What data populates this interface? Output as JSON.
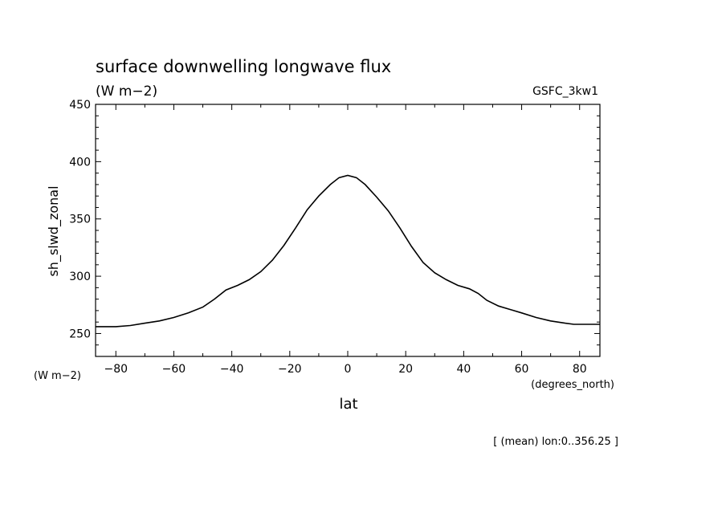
{
  "chart_data": {
    "type": "line",
    "title": "surface downwelling longwave flux",
    "units_label": "(W m−2)",
    "dataset_label": "GSFC_3kw1",
    "ylabel": "sh_slwd_zonal",
    "y_unit_label": "(W m−2)",
    "xlabel": "lat",
    "x_unit_label": "(degrees_north)",
    "footnote": "[ (mean) lon:0..356.25 ]",
    "xlim": [
      -87,
      87
    ],
    "ylim": [
      230,
      450
    ],
    "x_ticks": [
      -80,
      -60,
      -40,
      -20,
      0,
      20,
      40,
      60,
      80
    ],
    "y_ticks": [
      250,
      300,
      350,
      400,
      450
    ],
    "x_tick_labels": [
      "−80",
      "−60",
      "−40",
      "−20",
      "0",
      "20",
      "40",
      "60",
      "80"
    ],
    "y_tick_labels": [
      "250",
      "300",
      "350",
      "400",
      "450"
    ],
    "series": [
      {
        "x": [
          -87,
          -80,
          -75,
          -70,
          -65,
          -60,
          -55,
          -50,
          -46,
          -42,
          -38,
          -34,
          -30,
          -26,
          -22,
          -18,
          -14,
          -10,
          -6,
          -3,
          0,
          3,
          6,
          10,
          14,
          18,
          22,
          26,
          30,
          34,
          38,
          42,
          45,
          48,
          52,
          56,
          60,
          65,
          70,
          75,
          78,
          83,
          87
        ],
        "y": [
          256,
          256,
          257,
          259,
          261,
          264,
          268,
          273,
          280,
          288,
          292,
          297,
          304,
          314,
          327,
          342,
          358,
          370,
          380,
          386,
          388,
          386,
          380,
          369,
          357,
          342,
          326,
          312,
          303,
          297,
          292,
          289,
          285,
          279,
          274,
          271,
          268,
          264,
          261,
          259,
          258,
          258,
          258
        ]
      }
    ]
  }
}
